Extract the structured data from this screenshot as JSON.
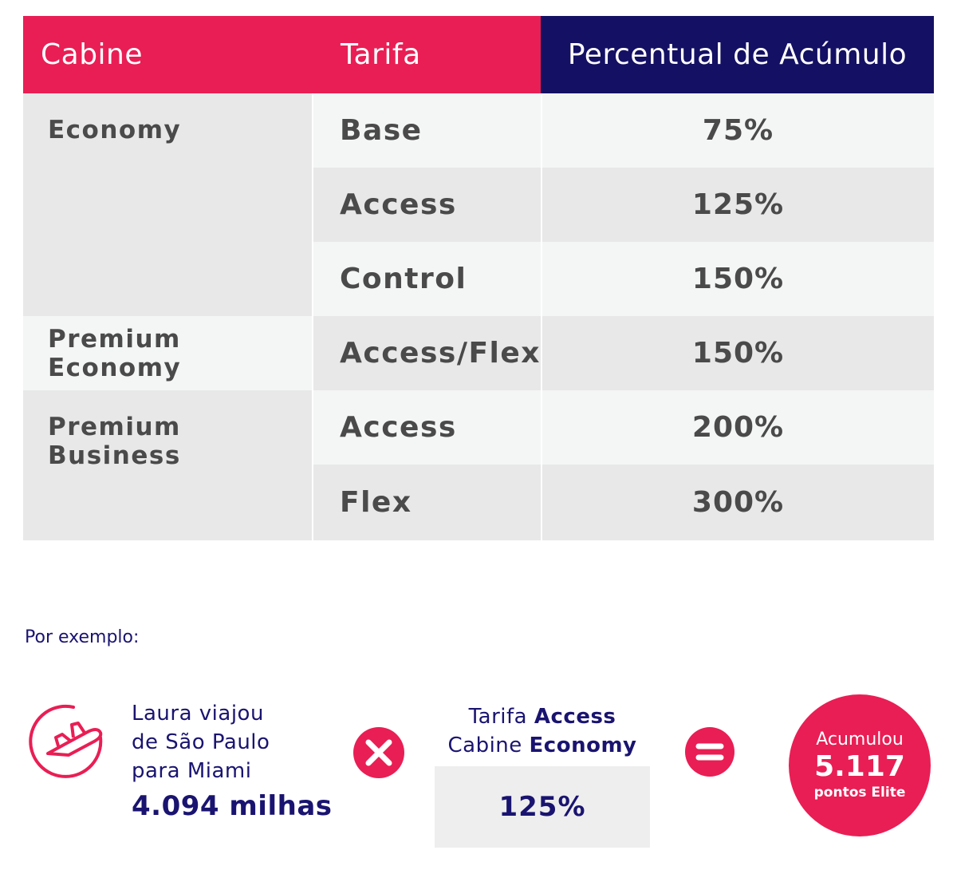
{
  "table": {
    "headers": {
      "cabine": "Cabine",
      "tarifa": "Tarifa",
      "percentual": "Percentual de Acúmulo"
    },
    "cabins": [
      "Economy",
      "Premium Economy",
      "Premium Business"
    ],
    "rows": [
      {
        "tarifa": "Base",
        "percentual": "75%"
      },
      {
        "tarifa": "Access",
        "percentual": "125%"
      },
      {
        "tarifa": "Control",
        "percentual": "150%"
      },
      {
        "tarifa": "Access/Flex",
        "percentual": "150%"
      },
      {
        "tarifa": "Access",
        "percentual": "200%"
      },
      {
        "tarifa": "Flex",
        "percentual": "300%"
      }
    ]
  },
  "example": {
    "label": "Por exemplo:",
    "trip_line1": "Laura viajou",
    "trip_line2": "de São Paulo",
    "trip_line3": "para Miami",
    "miles": "4.094 milhas",
    "tarifa_prefix": "Tarifa",
    "tarifa_value": "Access",
    "cabine_prefix": "Cabine",
    "cabine_value": "Economy",
    "percent": "125%",
    "result_label": "Acumulou",
    "result_value": "5.117",
    "result_unit": "pontos Elite",
    "icons": {
      "plane": "airplane-icon",
      "times": "multiply-icon",
      "equals": "equals-icon"
    },
    "colors": {
      "accent": "#e91e54",
      "navy": "#141063",
      "text_navy": "#1a1470"
    }
  }
}
